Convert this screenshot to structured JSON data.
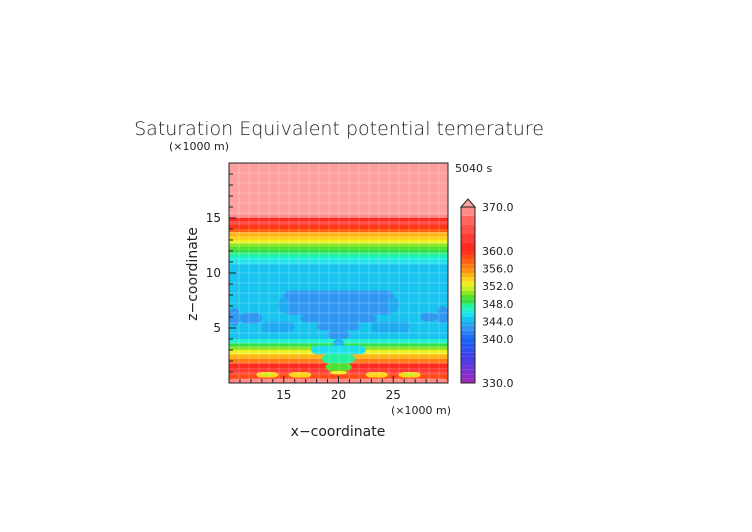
{
  "chart_data": {
    "type": "heatmap",
    "title": "Saturation Equivalent potential temerature",
    "time_label": "5040 s",
    "xlabel": "x−coordinate",
    "ylabel": "z−coordinate",
    "x_unit": "(×1000 m)",
    "z_unit": "(×1000 m)",
    "xlim": [
      10,
      30
    ],
    "zlim": [
      0,
      20
    ],
    "x_ticks": [
      15,
      20,
      25
    ],
    "z_ticks": [
      5,
      10,
      15
    ],
    "grid": false,
    "legend": "right",
    "colorbar": {
      "min": 330.0,
      "max": 370.0,
      "tick_labels": [
        "370.0",
        "360.0",
        "356.0",
        "352.0",
        "348.0",
        "344.0",
        "340.0",
        "330.0"
      ],
      "tick_values": [
        370,
        360,
        356,
        352,
        348,
        344,
        340,
        330
      ],
      "levels": [
        {
          "lo": 330,
          "hi": 331,
          "color": "#9a2bc0"
        },
        {
          "lo": 331,
          "hi": 332,
          "color": "#8a2dc8"
        },
        {
          "lo": 332,
          "hi": 333,
          "color": "#7a30d2"
        },
        {
          "lo": 333,
          "hi": 334,
          "color": "#6a35da"
        },
        {
          "lo": 334,
          "hi": 335,
          "color": "#5a3ae0"
        },
        {
          "lo": 335,
          "hi": 336,
          "color": "#4a3fe6"
        },
        {
          "lo": 336,
          "hi": 337,
          "color": "#3a44ec"
        },
        {
          "lo": 337,
          "hi": 338,
          "color": "#2f4df0"
        },
        {
          "lo": 338,
          "hi": 339,
          "color": "#2456f2"
        },
        {
          "lo": 339,
          "hi": 340,
          "color": "#1a60f4"
        },
        {
          "lo": 340,
          "hi": 341,
          "color": "#1f6ff5"
        },
        {
          "lo": 341,
          "hi": 342,
          "color": "#2a80f4"
        },
        {
          "lo": 342,
          "hi": 343,
          "color": "#3096f2"
        },
        {
          "lo": 343,
          "hi": 344,
          "color": "#1eaaf0"
        },
        {
          "lo": 344,
          "hi": 345,
          "color": "#18c4ef"
        },
        {
          "lo": 345,
          "hi": 346,
          "color": "#1ee0ec"
        },
        {
          "lo": 346,
          "hi": 347,
          "color": "#20f0d0"
        },
        {
          "lo": 347,
          "hi": 348,
          "color": "#22f29c"
        },
        {
          "lo": 348,
          "hi": 349,
          "color": "#2fe04a"
        },
        {
          "lo": 349,
          "hi": 350,
          "color": "#4fe030"
        },
        {
          "lo": 350,
          "hi": 351,
          "color": "#8fe624"
        },
        {
          "lo": 351,
          "hi": 352,
          "color": "#c8f020"
        },
        {
          "lo": 352,
          "hi": 353,
          "color": "#f0f020"
        },
        {
          "lo": 353,
          "hi": 354,
          "color": "#ffd418"
        },
        {
          "lo": 354,
          "hi": 355,
          "color": "#ffb416"
        },
        {
          "lo": 355,
          "hi": 356,
          "color": "#ff9414"
        },
        {
          "lo": 356,
          "hi": 357,
          "color": "#ff7a12"
        },
        {
          "lo": 357,
          "hi": 358,
          "color": "#ff6212"
        },
        {
          "lo": 358,
          "hi": 359,
          "color": "#ff4a14"
        },
        {
          "lo": 359,
          "hi": 360,
          "color": "#ff3616"
        },
        {
          "lo": 360,
          "hi": 362,
          "color": "#ff2a20"
        },
        {
          "lo": 362,
          "hi": 364,
          "color": "#ff3c34"
        },
        {
          "lo": 364,
          "hi": 366,
          "color": "#ff5048"
        },
        {
          "lo": 366,
          "hi": 368,
          "color": "#ff6660"
        },
        {
          "lo": 368,
          "hi": 370,
          "color": "#ff8a86"
        },
        {
          "lo": 370,
          "hi": 999,
          "color": "#ffa0a0"
        }
      ]
    },
    "bands": [
      {
        "z0": 15.3,
        "z1": 20.0,
        "value": 370.0
      },
      {
        "z0": 15.0,
        "z1": 15.3,
        "value": 368.8
      },
      {
        "z0": 14.7,
        "z1": 15.0,
        "value": 361.0
      },
      {
        "z0": 14.4,
        "z1": 14.7,
        "value": 362.0
      },
      {
        "z0": 14.0,
        "z1": 14.4,
        "value": 359.0
      },
      {
        "z0": 13.7,
        "z1": 14.0,
        "value": 357.5
      },
      {
        "z0": 13.3,
        "z1": 13.7,
        "value": 354.5
      },
      {
        "z0": 13.0,
        "z1": 13.3,
        "value": 353.5
      },
      {
        "z0": 12.7,
        "z1": 13.0,
        "value": 352.0
      },
      {
        "z0": 12.4,
        "z1": 12.7,
        "value": 350.5
      },
      {
        "z0": 12.1,
        "z1": 12.4,
        "value": 349.5
      },
      {
        "z0": 11.8,
        "z1": 12.1,
        "value": 348.5
      },
      {
        "z0": 11.5,
        "z1": 11.8,
        "value": 347.5
      },
      {
        "z0": 11.2,
        "z1": 11.5,
        "value": 346.6
      },
      {
        "z0": 10.8,
        "z1": 11.2,
        "value": 345.5
      },
      {
        "z0": 8.0,
        "z1": 10.8,
        "value": 344.5
      },
      {
        "z0": 4.0,
        "z1": 8.0,
        "value": 344.5
      },
      {
        "z0": 3.6,
        "z1": 4.0,
        "value": 346.5
      },
      {
        "z0": 3.3,
        "z1": 3.6,
        "value": 348.5
      },
      {
        "z0": 3.0,
        "z1": 3.3,
        "value": 350.5
      },
      {
        "z0": 2.6,
        "z1": 3.0,
        "value": 352.5
      },
      {
        "z0": 2.2,
        "z1": 2.6,
        "value": 354.5
      },
      {
        "z0": 1.8,
        "z1": 2.2,
        "value": 356.5
      },
      {
        "z0": 1.3,
        "z1": 1.8,
        "value": 360.5
      },
      {
        "z0": 0.8,
        "z1": 1.3,
        "value": 362.5
      },
      {
        "z0": 0.0,
        "z1": 0.8,
        "value": 358.5
      }
    ],
    "cells": [
      {
        "x0": 10.0,
        "x1": 11.0,
        "z0": 5.2,
        "z1": 6.8,
        "value": 342.5
      },
      {
        "x0": 11.0,
        "x1": 13.0,
        "z0": 5.4,
        "z1": 6.4,
        "value": 342.5
      },
      {
        "x0": 29.0,
        "x1": 30.0,
        "z0": 5.4,
        "z1": 7.0,
        "value": 342.5
      },
      {
        "x0": 27.5,
        "x1": 29.0,
        "z0": 5.6,
        "z1": 6.4,
        "value": 342.5
      },
      {
        "x0": 15.0,
        "x1": 25.0,
        "z0": 6.2,
        "z1": 8.4,
        "value": 342.5
      },
      {
        "x0": 14.5,
        "x1": 15.5,
        "z0": 6.4,
        "z1": 7.8,
        "value": 343.5
      },
      {
        "x0": 24.5,
        "x1": 25.5,
        "z0": 6.4,
        "z1": 7.8,
        "value": 343.5
      },
      {
        "x0": 16.5,
        "x1": 23.5,
        "z0": 5.5,
        "z1": 6.2,
        "value": 342.5
      },
      {
        "x0": 18.0,
        "x1": 22.0,
        "z0": 4.8,
        "z1": 5.5,
        "value": 342.5
      },
      {
        "x0": 13.0,
        "x1": 16.0,
        "z0": 4.6,
        "z1": 5.6,
        "value": 343.5
      },
      {
        "x0": 23.0,
        "x1": 26.5,
        "z0": 4.6,
        "z1": 5.6,
        "value": 343.5
      },
      {
        "x0": 19.0,
        "x1": 21.0,
        "z0": 4.0,
        "z1": 4.8,
        "value": 342.5
      },
      {
        "x0": 19.5,
        "x1": 20.5,
        "z0": 3.2,
        "z1": 4.0,
        "value": 343.5
      },
      {
        "x0": 17.5,
        "x1": 22.5,
        "z0": 2.6,
        "z1": 3.4,
        "value": 345.5
      },
      {
        "x0": 18.5,
        "x1": 21.5,
        "z0": 1.8,
        "z1": 2.6,
        "value": 347.5
      },
      {
        "x0": 18.8,
        "x1": 21.2,
        "z0": 1.1,
        "z1": 1.8,
        "value": 349.5
      },
      {
        "x0": 19.2,
        "x1": 20.8,
        "z0": 0.8,
        "z1": 1.1,
        "value": 352.5
      },
      {
        "x0": 12.5,
        "x1": 14.5,
        "z0": 0.5,
        "z1": 1.0,
        "value": 353.5
      },
      {
        "x0": 15.5,
        "x1": 17.5,
        "z0": 0.5,
        "z1": 1.0,
        "value": 353.5
      },
      {
        "x0": 22.5,
        "x1": 24.5,
        "z0": 0.5,
        "z1": 1.0,
        "value": 353.5
      },
      {
        "x0": 25.5,
        "x1": 27.5,
        "z0": 0.5,
        "z1": 1.0,
        "value": 353.5
      },
      {
        "x0": 13.0,
        "x1": 14.0,
        "z0": 0.6,
        "z1": 0.9,
        "value": 351.0
      },
      {
        "x0": 26.0,
        "x1": 27.0,
        "z0": 0.6,
        "z1": 0.9,
        "value": 351.0
      },
      {
        "x0": 10.0,
        "x1": 30.0,
        "z0": 0.0,
        "z1": 0.4,
        "value": 369.0
      }
    ]
  }
}
